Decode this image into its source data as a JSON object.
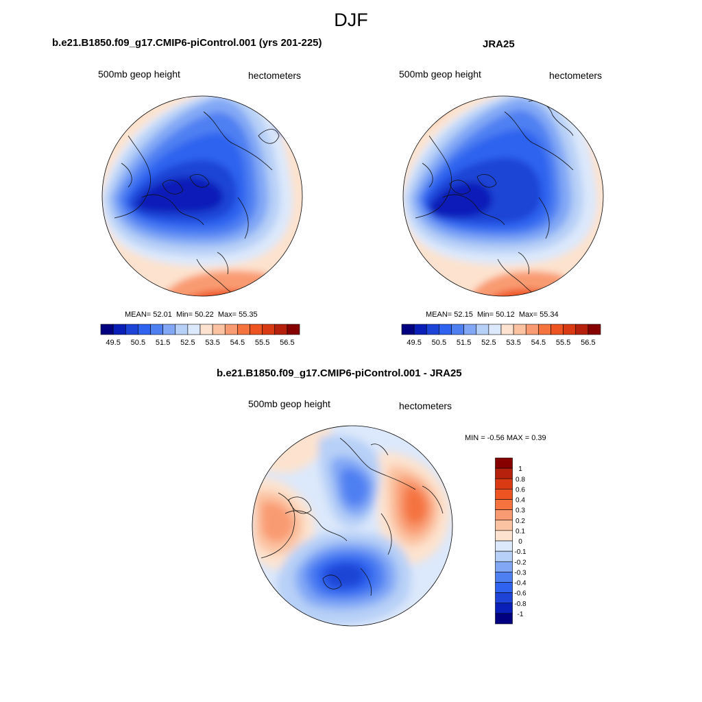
{
  "season": "DJF",
  "scale_colors": [
    "#000080",
    "#0a1fb8",
    "#1d44d6",
    "#2f63ef",
    "#4f80f2",
    "#82a8f5",
    "#b7d0f7",
    "#dce8fb",
    "#fde3cf",
    "#fbc3a2",
    "#f99b72",
    "#f4733f",
    "#ee5421",
    "#d93a14",
    "#b5210c",
    "#870000"
  ],
  "diff_colors": [
    "#000080",
    "#0a1fb8",
    "#1d44d6",
    "#2f63ef",
    "#4f80f2",
    "#82a8f5",
    "#b7d0f7",
    "#dce8fb",
    "#fde3cf",
    "#fbc3a2",
    "#f99b72",
    "#f4733f",
    "#ee5421",
    "#d93a14",
    "#b5210c",
    "#870000"
  ],
  "chart_data": [
    {
      "type": "heatmap",
      "projection": "north-polar-stereographic",
      "title": "b.e21.B1850.f09_g17.CMIP6-piControl.001 (yrs 201-225)",
      "left_label": "500mb geop height",
      "right_label": "hectometers",
      "stats": {
        "mean_label": "MEAN=",
        "mean": "52.01",
        "min_label": "Min=",
        "min": "50.22",
        "max_label": "Max=",
        "max": "55.35"
      },
      "colorbar_ticks": [
        "49.5",
        "50.5",
        "51.5",
        "52.5",
        "53.5",
        "54.5",
        "55.5",
        "56.5"
      ],
      "colorbar_levels": [
        49.5,
        50,
        50.5,
        51,
        51.5,
        52,
        52.5,
        53,
        53.5,
        54,
        54.5,
        55,
        55.5,
        56,
        56.5
      ]
    },
    {
      "type": "heatmap",
      "projection": "north-polar-stereographic",
      "title": "JRA25",
      "left_label": "500mb geop height",
      "right_label": "hectometers",
      "stats": {
        "mean_label": "MEAN=",
        "mean": "52.15",
        "min_label": "Min=",
        "min": "50.12",
        "max_label": "Max=",
        "max": "55.34"
      },
      "colorbar_ticks": [
        "49.5",
        "50.5",
        "51.5",
        "52.5",
        "53.5",
        "54.5",
        "55.5",
        "56.5"
      ],
      "colorbar_levels": [
        49.5,
        50,
        50.5,
        51,
        51.5,
        52,
        52.5,
        53,
        53.5,
        54,
        54.5,
        55,
        55.5,
        56,
        56.5
      ]
    },
    {
      "type": "heatmap",
      "projection": "north-polar-stereographic",
      "title": "b.e21.B1850.f09_g17.CMIP6-piControl.001 - JRA25",
      "left_label": "500mb geop height",
      "right_label": "hectometers",
      "stats_text": "MIN =  -0.56 MAX =   0.39",
      "colorbar_ticks": [
        "1",
        "0.8",
        "0.6",
        "0.4",
        "0.3",
        "0.2",
        "0.1",
        "0",
        "-0.1",
        "-0.2",
        "-0.3",
        "-0.4",
        "-0.6",
        "-0.8",
        "-1"
      ],
      "colorbar_levels": [
        -1,
        -0.8,
        -0.6,
        -0.4,
        -0.3,
        -0.2,
        -0.1,
        0,
        0.1,
        0.2,
        0.3,
        0.4,
        0.6,
        0.8,
        1
      ]
    }
  ]
}
